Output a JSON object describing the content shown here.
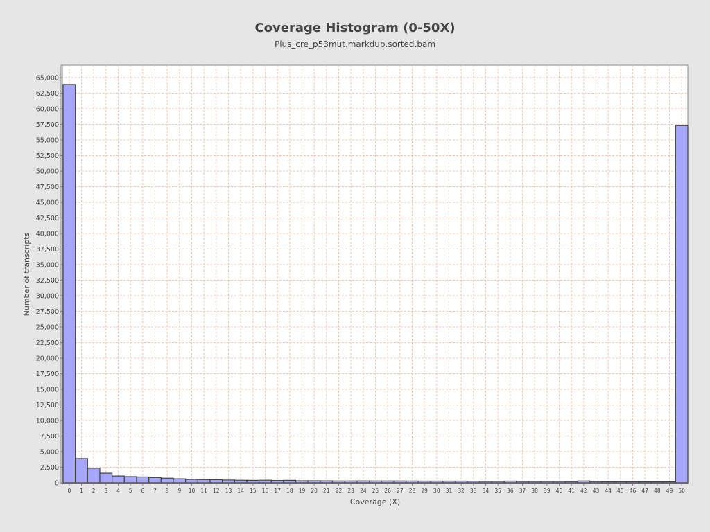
{
  "colors": {
    "background": "#e6e6e6",
    "plot_background": "#ffffff",
    "bar_fill": "#a6a6fb",
    "bar_stroke": "#444444",
    "gridline": "#f0c8b0",
    "text": "#444444"
  },
  "chart_data": {
    "type": "bar",
    "title": "Coverage Histogram (0-50X)",
    "subtitle": "Plus_cre_p53mut.markdup.sorted.bam",
    "xlabel": "Coverage (X)",
    "ylabel": "Number of transcripts",
    "grid": true,
    "ylim": [
      0,
      67000
    ],
    "ytick_step": 2500,
    "categories": [
      "0",
      "1",
      "2",
      "3",
      "4",
      "5",
      "6",
      "7",
      "8",
      "9",
      "10",
      "11",
      "12",
      "13",
      "14",
      "15",
      "16",
      "17",
      "18",
      "19",
      "20",
      "21",
      "22",
      "23",
      "24",
      "25",
      "26",
      "27",
      "28",
      "29",
      "30",
      "31",
      "32",
      "33",
      "34",
      "35",
      "36",
      "37",
      "38",
      "39",
      "40",
      "41",
      "42",
      "43",
      "44",
      "45",
      "46",
      "47",
      "48",
      "49",
      "50"
    ],
    "values": [
      63900,
      3900,
      2350,
      1550,
      1100,
      1000,
      950,
      850,
      750,
      650,
      550,
      520,
      500,
      450,
      420,
      400,
      420,
      380,
      400,
      330,
      330,
      320,
      300,
      300,
      310,
      300,
      300,
      300,
      290,
      280,
      280,
      280,
      280,
      260,
      230,
      230,
      280,
      220,
      220,
      220,
      220,
      200,
      300,
      200,
      180,
      180,
      180,
      170,
      170,
      170,
      57300
    ]
  }
}
